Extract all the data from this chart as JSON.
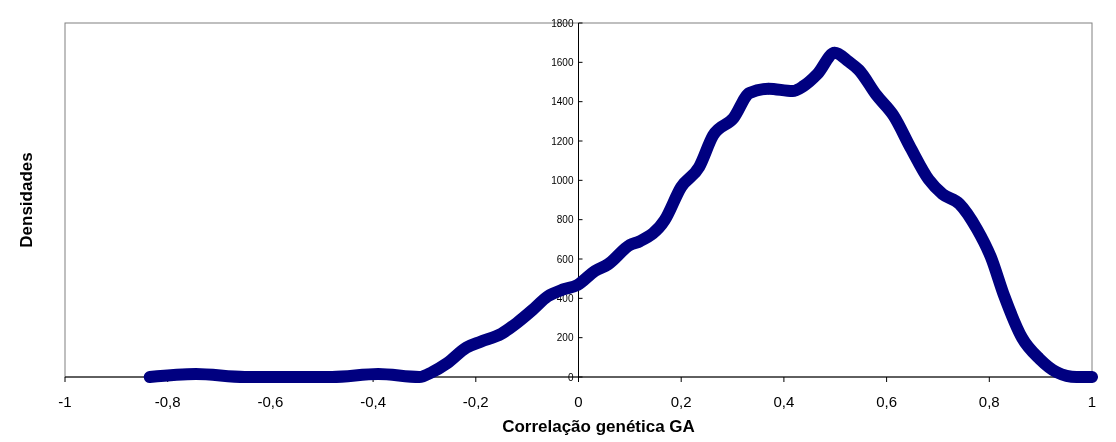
{
  "chart_data": {
    "type": "line",
    "xlabel": "Correlação genética GA",
    "ylabel": "Densidades",
    "x": [
      -0.835,
      -0.745,
      -0.65,
      -0.48,
      -0.39,
      -0.31,
      -0.285,
      -0.256,
      -0.218,
      -0.19,
      -0.15,
      -0.12,
      -0.09,
      -0.06,
      -0.03,
      -0.002,
      0.032,
      0.058,
      0.1,
      0.12,
      0.168,
      0.2,
      0.235,
      0.262,
      0.302,
      0.333,
      0.37,
      0.417,
      0.438,
      0.465,
      0.499,
      0.526,
      0.546,
      0.58,
      0.614,
      0.647,
      0.682,
      0.709,
      0.742,
      0.776,
      0.803,
      0.829,
      0.864,
      0.898,
      0.931,
      0.97,
      1.0
    ],
    "series": [
      {
        "color": "#000080",
        "values": [
          0,
          15,
          0,
          0,
          15,
          0,
          25,
          70,
          150,
          180,
          220,
          275,
          340,
          410,
          445,
          468,
          539,
          574,
          671,
          691,
          798,
          966,
          1068,
          1228,
          1317,
          1444,
          1466,
          1454,
          1479,
          1540,
          1649,
          1604,
          1561,
          1434,
          1327,
          1164,
          1004,
          930,
          880,
          752,
          610,
          412,
          198,
          92,
          25,
          0,
          0
        ]
      }
    ],
    "xlim": [
      -1,
      1
    ],
    "ylim": [
      0,
      1800
    ],
    "xticks": [
      -1,
      {
        "value": -0.8,
        "label": "-0,8"
      },
      {
        "value": -0.6,
        "label": "-0,6"
      },
      {
        "value": -0.4,
        "label": "-0,4"
      },
      {
        "value": -0.2,
        "label": "-0,2"
      },
      0,
      {
        "value": 0.2,
        "label": "0,2"
      },
      {
        "value": 0.4,
        "label": "0,4"
      },
      {
        "value": 0.6,
        "label": "0,6"
      },
      {
        "value": 0.8,
        "label": "0,8"
      },
      1
    ],
    "yticks": [
      0,
      200,
      400,
      600,
      800,
      1000,
      1200,
      1400,
      1600,
      1800
    ],
    "marker": "diamond",
    "line_style": "solid",
    "grid": false
  }
}
